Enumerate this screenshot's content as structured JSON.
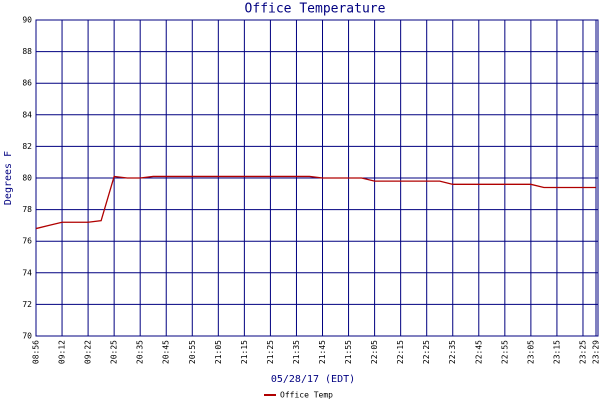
{
  "chart_data": {
    "type": "line",
    "title": "Office Temperature",
    "x_label": "05/28/17 (EDT)",
    "y_label": "Degrees F",
    "categories": [
      "08:56",
      null,
      "09:12",
      null,
      "09:22",
      null,
      "20:25",
      null,
      "20:35",
      null,
      "20:45",
      null,
      "20:55",
      null,
      "21:05",
      null,
      "21:15",
      null,
      "21:25",
      null,
      "21:35",
      null,
      "21:45",
      null,
      "21:55",
      null,
      "22:05",
      null,
      "22:15",
      null,
      "22:25",
      null,
      "22:35",
      null,
      "22:45",
      null,
      "22:55",
      null,
      "23:05",
      null,
      "23:15",
      null,
      "23:25",
      "23:29"
    ],
    "series": [
      {
        "name": "Office Temp",
        "color": "#b00000",
        "values": [
          76.8,
          77.0,
          77.2,
          77.2,
          77.2,
          77.3,
          80.1,
          80.0,
          80.0,
          80.1,
          80.1,
          80.1,
          80.1,
          80.1,
          80.1,
          80.1,
          80.1,
          80.1,
          80.1,
          80.1,
          80.1,
          80.1,
          80.0,
          80.0,
          80.0,
          80.0,
          79.8,
          79.8,
          79.8,
          79.8,
          79.8,
          79.8,
          79.6,
          79.6,
          79.6,
          79.6,
          79.6,
          79.6,
          79.6,
          79.4,
          79.4,
          79.4,
          79.4,
          79.4
        ]
      }
    ],
    "ylim": [
      70,
      90
    ],
    "yticks": [
      70,
      72,
      74,
      76,
      78,
      80,
      82,
      84,
      86,
      88,
      90
    ],
    "grid": true,
    "grid_color": "#000080"
  }
}
